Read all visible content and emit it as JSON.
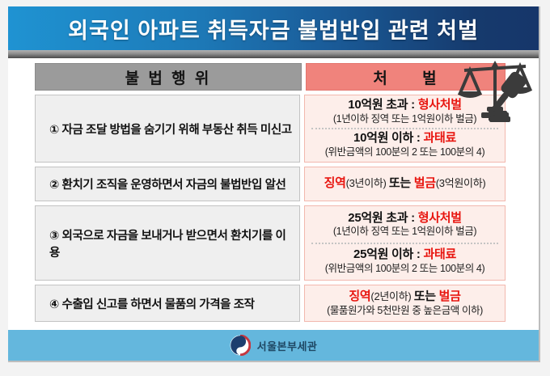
{
  "title": "외국인 아파트 취득자금 불법반입 관련 처벌",
  "table": {
    "col_headers": {
      "left": "불 법 행 위",
      "right": "처 벌"
    },
    "rows": [
      {
        "act": "① 자금 조달 방법을 숨기기 위해 부동산 취득 미신고",
        "blocks": [
          {
            "segments": [
              {
                "text": "10억원 초과 : ",
                "style": "bold"
              },
              {
                "text": "형사처벌",
                "style": "red"
              }
            ],
            "detail": "(1년이하 징역 또는 1억원이하 벌금)"
          },
          {
            "segments": [
              {
                "text": "10억원 이하 : ",
                "style": "bold"
              },
              {
                "text": "과태료",
                "style": "red"
              }
            ],
            "detail": "(위반금액의 100분의 2 또는 100분의 4)"
          }
        ]
      },
      {
        "act": "② 환치기 조직을 운영하면서 자금의 불법반입 알선",
        "blocks": [
          {
            "segments": [
              {
                "text": "징역",
                "style": "red"
              },
              {
                "text": "(3년이하) ",
                "style": "normal"
              },
              {
                "text": "또는 ",
                "style": "bold"
              },
              {
                "text": "벌금",
                "style": "red"
              },
              {
                "text": "(3억원이하)",
                "style": "normal"
              }
            ]
          }
        ]
      },
      {
        "act": "③ 외국으로 자금을 보내거나 받으면서 환치기를 이용",
        "blocks": [
          {
            "segments": [
              {
                "text": "25억원 초과 : ",
                "style": "bold"
              },
              {
                "text": "형사처벌",
                "style": "red"
              }
            ],
            "detail": "(1년이하 징역 또는 1억원이하 벌금)"
          },
          {
            "segments": [
              {
                "text": "25억원 이하 : ",
                "style": "bold"
              },
              {
                "text": "과태료",
                "style": "red"
              }
            ],
            "detail": "(위반금액의 100분의 2 또는 100분의 4)"
          }
        ]
      },
      {
        "act": "④ 수출입 신고를 하면서 물품의 가격을 조작",
        "blocks": [
          {
            "segments": [
              {
                "text": "징역",
                "style": "red"
              },
              {
                "text": "(2년이하) ",
                "style": "normal"
              },
              {
                "text": "또는 ",
                "style": "bold"
              },
              {
                "text": "벌금",
                "style": "red"
              }
            ],
            "detail": "(물품원가와 5천만원 중 높은금액 이하)"
          }
        ]
      }
    ]
  },
  "icons": {
    "scales": "scales-of-justice-icon",
    "gavel": "gavel-icon",
    "emblem": "korea-government-emblem-icon"
  },
  "footer": {
    "org": "서울본부세관"
  },
  "colors": {
    "banner_gradient_start": "#1f93d2",
    "banner_gradient_end": "#16366a",
    "header_left_bg": "#9b9b9b",
    "header_right_bg": "#f0837c",
    "act_cell_bg": "#efefef",
    "penalty_cell_bg": "#fdeeea",
    "penalty_cell_border": "#f2b8ae",
    "accent_red": "#e8150f",
    "footer_bg": "#64b7dd",
    "icon_color": "#3b3b3b"
  }
}
